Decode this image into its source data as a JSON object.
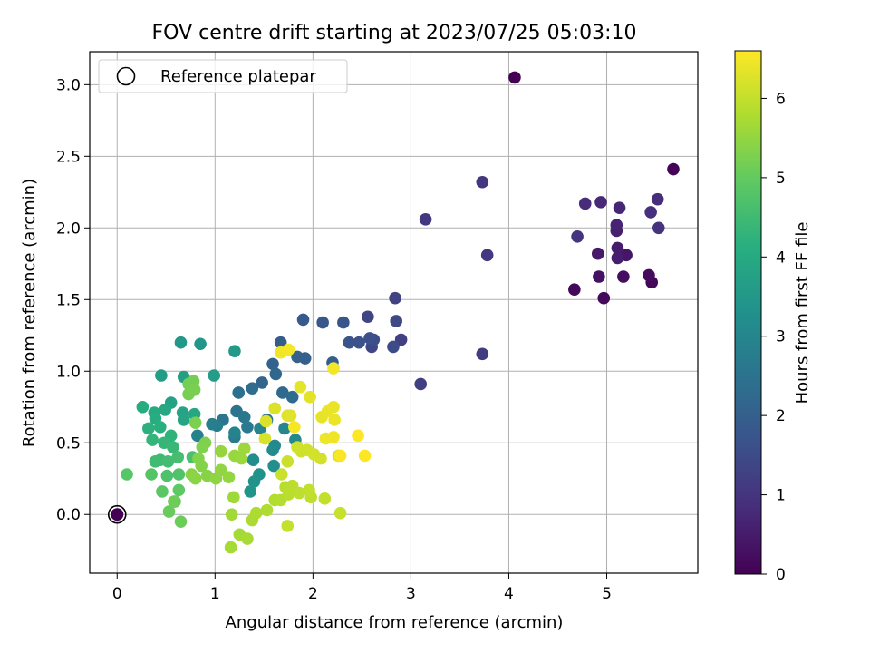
{
  "chart_data": {
    "type": "scatter",
    "title": "FOV centre drift starting at 2023/07/25 05:03:10",
    "xlabel": "Angular distance from reference (arcmin)",
    "ylabel": "Rotation from reference (arcmin)",
    "xlim": [
      -0.28,
      5.93
    ],
    "ylim": [
      -0.41,
      3.23
    ],
    "xticks": [
      0,
      1,
      2,
      3,
      4,
      5
    ],
    "yticks": [
      0.0,
      0.5,
      1.0,
      1.5,
      2.0,
      2.5,
      3.0
    ],
    "xtick_labels": [
      "0",
      "1",
      "2",
      "3",
      "4",
      "5"
    ],
    "ytick_labels": [
      "0.0",
      "0.5",
      "1.0",
      "1.5",
      "2.0",
      "2.5",
      "3.0"
    ],
    "grid": true,
    "legend": {
      "placement": "top-left",
      "label": "Reference platepar"
    },
    "reference_point": {
      "x": 0,
      "y": 0
    },
    "colorbar": {
      "label": "Hours from first FF file",
      "colormap": "viridis",
      "range": [
        0,
        6.6
      ],
      "ticks": [
        0,
        1,
        2,
        3,
        4,
        5,
        6
      ],
      "tick_labels": [
        "0",
        "1",
        "2",
        "3",
        "4",
        "5",
        "6"
      ]
    },
    "points": [
      [
        4.06,
        3.05,
        0.0
      ],
      [
        5.68,
        2.41,
        0.08
      ],
      [
        5.46,
        1.62,
        0.1
      ],
      [
        4.67,
        1.57,
        0.12
      ],
      [
        4.97,
        1.51,
        0.15
      ],
      [
        5.43,
        1.67,
        0.2
      ],
      [
        5.17,
        1.66,
        0.25
      ],
      [
        4.92,
        1.66,
        0.3
      ],
      [
        5.12,
        1.8,
        0.35
      ],
      [
        5.2,
        1.81,
        0.4
      ],
      [
        4.91,
        1.82,
        0.45
      ],
      [
        5.11,
        1.86,
        0.5
      ],
      [
        5.11,
        1.79,
        0.55
      ],
      [
        5.1,
        1.98,
        0.6
      ],
      [
        5.1,
        2.02,
        0.65
      ],
      [
        5.13,
        2.14,
        0.7
      ],
      [
        4.94,
        2.18,
        0.75
      ],
      [
        4.78,
        2.17,
        0.8
      ],
      [
        5.52,
        2.2,
        0.85
      ],
      [
        5.45,
        2.11,
        0.9
      ],
      [
        5.53,
        2.0,
        0.95
      ],
      [
        4.7,
        1.94,
        1.0
      ],
      [
        3.73,
        2.32,
        1.05
      ],
      [
        3.15,
        2.06,
        1.08
      ],
      [
        3.78,
        1.81,
        1.1
      ],
      [
        3.73,
        1.12,
        1.15
      ],
      [
        3.1,
        0.91,
        1.2
      ],
      [
        2.9,
        1.22,
        1.25
      ],
      [
        2.84,
        1.51,
        1.3
      ],
      [
        2.56,
        1.38,
        1.35
      ],
      [
        2.6,
        1.17,
        1.4
      ],
      [
        2.85,
        1.35,
        1.45
      ],
      [
        2.82,
        1.17,
        1.5
      ],
      [
        2.62,
        1.22,
        1.55
      ],
      [
        2.58,
        1.23,
        1.6
      ],
      [
        2.47,
        1.2,
        1.65
      ],
      [
        2.37,
        1.2,
        1.7
      ],
      [
        2.31,
        1.34,
        1.75
      ],
      [
        2.1,
        1.34,
        1.8
      ],
      [
        1.9,
        1.36,
        1.85
      ],
      [
        1.67,
        1.2,
        1.9
      ],
      [
        2.2,
        1.06,
        1.95
      ],
      [
        1.92,
        1.09,
        2.0
      ],
      [
        1.84,
        1.1,
        2.05
      ],
      [
        1.59,
        1.05,
        2.1
      ],
      [
        1.48,
        0.92,
        2.15
      ],
      [
        1.62,
        0.98,
        2.2
      ],
      [
        1.69,
        0.85,
        2.25
      ],
      [
        1.79,
        0.82,
        2.3
      ],
      [
        1.38,
        0.88,
        2.35
      ],
      [
        1.24,
        0.85,
        2.4
      ],
      [
        1.53,
        0.66,
        2.45
      ],
      [
        1.22,
        0.72,
        2.5
      ],
      [
        1.08,
        0.66,
        2.55
      ],
      [
        1.3,
        0.68,
        2.6
      ],
      [
        1.33,
        0.61,
        2.65
      ],
      [
        1.2,
        0.54,
        2.7
      ],
      [
        1.02,
        0.62,
        2.75
      ],
      [
        0.97,
        0.63,
        2.8
      ],
      [
        0.82,
        0.55,
        2.85
      ],
      [
        1.2,
        0.57,
        2.9
      ],
      [
        1.46,
        0.6,
        2.95
      ],
      [
        1.71,
        0.6,
        3.0
      ],
      [
        1.82,
        0.52,
        3.05
      ],
      [
        1.61,
        0.48,
        3.1
      ],
      [
        1.59,
        0.45,
        3.15
      ],
      [
        1.39,
        0.38,
        3.2
      ],
      [
        1.6,
        0.34,
        3.25
      ],
      [
        1.45,
        0.28,
        3.3
      ],
      [
        1.4,
        0.23,
        3.35
      ],
      [
        1.36,
        0.16,
        3.4
      ],
      [
        0.85,
        1.19,
        3.45
      ],
      [
        0.65,
        1.2,
        3.5
      ],
      [
        1.2,
        1.14,
        3.55
      ],
      [
        0.99,
        0.97,
        3.6
      ],
      [
        0.45,
        0.97,
        3.65
      ],
      [
        0.68,
        0.96,
        3.7
      ],
      [
        0.55,
        0.78,
        3.75
      ],
      [
        0.67,
        0.71,
        3.8
      ],
      [
        0.68,
        0.66,
        3.85
      ],
      [
        0.79,
        0.7,
        3.9
      ],
      [
        0.49,
        0.73,
        3.95
      ],
      [
        0.38,
        0.71,
        4.0
      ],
      [
        0.26,
        0.75,
        4.05
      ],
      [
        0.39,
        0.67,
        4.1
      ],
      [
        0.44,
        0.61,
        4.15
      ],
      [
        0.32,
        0.6,
        4.2
      ],
      [
        0.55,
        0.55,
        4.25
      ],
      [
        0.36,
        0.52,
        4.3
      ],
      [
        0.48,
        0.5,
        4.35
      ],
      [
        0.57,
        0.47,
        4.4
      ],
      [
        0.44,
        0.38,
        4.45
      ],
      [
        0.39,
        0.37,
        4.5
      ],
      [
        0.52,
        0.37,
        4.55
      ],
      [
        0.62,
        0.4,
        4.6
      ],
      [
        0.77,
        0.4,
        4.65
      ],
      [
        0.51,
        0.27,
        4.7
      ],
      [
        0.63,
        0.28,
        4.75
      ],
      [
        0.35,
        0.28,
        4.8
      ],
      [
        0.1,
        0.28,
        4.85
      ],
      [
        0.46,
        0.16,
        4.9
      ],
      [
        0.63,
        0.17,
        4.95
      ],
      [
        0.59,
        0.09,
        5.0
      ],
      [
        0.53,
        0.02,
        5.05
      ],
      [
        0.65,
        -0.05,
        5.1
      ],
      [
        0.58,
        0.09,
        5.12
      ],
      [
        0.73,
        0.91,
        5.15
      ],
      [
        0.78,
        0.93,
        5.18
      ],
      [
        0.73,
        0.84,
        5.2
      ],
      [
        0.79,
        0.87,
        5.22
      ],
      [
        0.8,
        0.64,
        5.25
      ],
      [
        0.9,
        0.5,
        5.28
      ],
      [
        0.87,
        0.47,
        5.3
      ],
      [
        0.83,
        0.39,
        5.32
      ],
      [
        0.86,
        0.34,
        5.35
      ],
      [
        0.92,
        0.27,
        5.38
      ],
      [
        0.76,
        0.28,
        5.4
      ],
      [
        0.8,
        0.25,
        5.42
      ],
      [
        1.01,
        0.25,
        5.45
      ],
      [
        1.06,
        0.31,
        5.48
      ],
      [
        1.14,
        0.26,
        5.5
      ],
      [
        1.06,
        0.44,
        5.52
      ],
      [
        1.2,
        0.41,
        5.55
      ],
      [
        1.27,
        0.39,
        5.58
      ],
      [
        1.3,
        0.46,
        5.6
      ],
      [
        1.19,
        0.12,
        5.62
      ],
      [
        1.17,
        0.0,
        5.65
      ],
      [
        1.25,
        -0.14,
        5.68
      ],
      [
        1.16,
        -0.23,
        5.7
      ],
      [
        1.33,
        -0.17,
        5.72
      ],
      [
        1.38,
        -0.04,
        5.75
      ],
      [
        1.42,
        0.01,
        5.78
      ],
      [
        1.53,
        0.03,
        5.8
      ],
      [
        1.61,
        0.1,
        5.82
      ],
      [
        1.67,
        0.1,
        5.85
      ],
      [
        1.72,
        0.19,
        5.88
      ],
      [
        1.75,
        0.14,
        5.9
      ],
      [
        1.79,
        0.2,
        5.92
      ],
      [
        1.86,
        0.15,
        5.94
      ],
      [
        1.98,
        0.12,
        5.96
      ],
      [
        1.96,
        0.17,
        5.98
      ],
      [
        2.12,
        0.11,
        6.0
      ],
      [
        1.74,
        -0.08,
        6.02
      ],
      [
        2.28,
        0.01,
        6.04
      ],
      [
        1.68,
        0.28,
        6.06
      ],
      [
        1.74,
        0.37,
        6.08
      ],
      [
        1.84,
        0.47,
        6.1
      ],
      [
        1.88,
        0.44,
        6.12
      ],
      [
        1.94,
        0.45,
        6.14
      ],
      [
        2.01,
        0.42,
        6.16
      ],
      [
        2.08,
        0.39,
        6.18
      ],
      [
        2.26,
        0.41,
        6.2
      ],
      [
        1.51,
        0.53,
        6.22
      ],
      [
        1.52,
        0.65,
        6.24
      ],
      [
        1.61,
        0.74,
        6.26
      ],
      [
        1.74,
        0.69,
        6.28
      ],
      [
        1.77,
        0.69,
        6.3
      ],
      [
        1.97,
        0.82,
        6.32
      ],
      [
        1.87,
        0.89,
        6.34
      ],
      [
        2.09,
        0.68,
        6.36
      ],
      [
        2.15,
        0.72,
        6.38
      ],
      [
        2.21,
        0.75,
        6.4
      ],
      [
        2.22,
        0.66,
        6.42
      ],
      [
        2.13,
        0.53,
        6.44
      ],
      [
        2.21,
        0.54,
        6.46
      ],
      [
        1.67,
        1.13,
        6.48
      ],
      [
        2.21,
        1.02,
        6.5
      ],
      [
        1.75,
        1.15,
        6.52
      ],
      [
        1.81,
        0.61,
        6.54
      ],
      [
        2.28,
        0.41,
        6.56
      ],
      [
        2.46,
        0.55,
        6.58
      ],
      [
        2.53,
        0.41,
        6.6
      ]
    ]
  }
}
